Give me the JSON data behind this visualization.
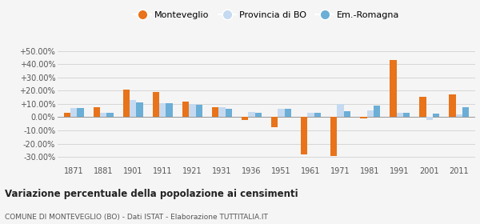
{
  "years": [
    1871,
    1881,
    1901,
    1911,
    1921,
    1931,
    1936,
    1951,
    1961,
    1971,
    1981,
    1991,
    2001,
    2011
  ],
  "monteveglio": [
    3.5,
    7.5,
    20.5,
    19.0,
    12.0,
    7.5,
    -2.0,
    -7.5,
    -28.0,
    -29.5,
    -1.0,
    43.0,
    15.5,
    17.0
  ],
  "provincia_bo": [
    7.0,
    3.5,
    13.0,
    10.5,
    10.0,
    7.5,
    4.0,
    6.5,
    3.5,
    10.0,
    5.0,
    3.0,
    -2.0,
    2.0
  ],
  "em_romagna": [
    7.0,
    3.0,
    11.0,
    10.5,
    9.5,
    6.5,
    3.0,
    6.5,
    3.5,
    4.5,
    9.0,
    3.0,
    2.5,
    7.5
  ],
  "color_monteveglio": "#e8731a",
  "color_provincia": "#c5daf0",
  "color_emromagna": "#6baed6",
  "bg_color": "#f5f5f5",
  "title": "Variazione percentuale della popolazione ai censimenti",
  "subtitle": "COMUNE DI MONTEVEGLIO (BO) - Dati ISTAT - Elaborazione TUTTITALIA.IT",
  "legend_labels": [
    "Monteveglio",
    "Provincia di BO",
    "Em.-Romagna"
  ],
  "ylim": [
    -35,
    58
  ],
  "yticks": [
    -30,
    -20,
    -10,
    0,
    10,
    20,
    30,
    40,
    50
  ],
  "ytick_labels": [
    "-30.00%",
    "-20.00%",
    "-10.00%",
    "0.00%",
    "+10.00%",
    "+20.00%",
    "+30.00%",
    "+40.00%",
    "+50.00%"
  ]
}
